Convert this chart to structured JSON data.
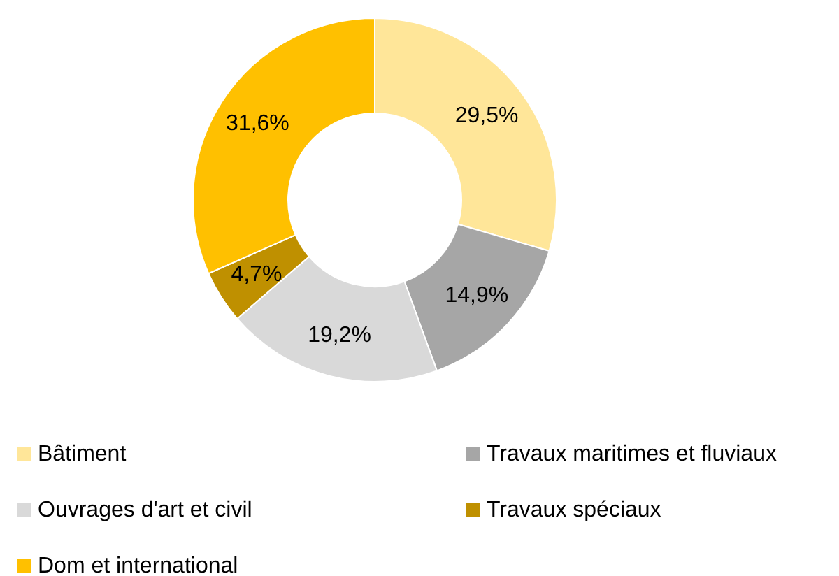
{
  "chart_data": {
    "type": "donut",
    "categories": [
      "Bâtiment",
      "Travaux maritimes et fluviaux",
      "Ouvrages d'art et civil",
      "Travaux spéciaux",
      "Dom et international"
    ],
    "values": [
      29.5,
      14.9,
      19.2,
      4.7,
      31.6
    ],
    "colors": [
      "#ffe699",
      "#a6a6a6",
      "#d9d9d9",
      "#bf9000",
      "#ffc000"
    ],
    "value_labels": [
      "29,5%",
      "14,9%",
      "19,2%",
      "4,7%",
      "31,6%"
    ],
    "legend": "bottom"
  }
}
